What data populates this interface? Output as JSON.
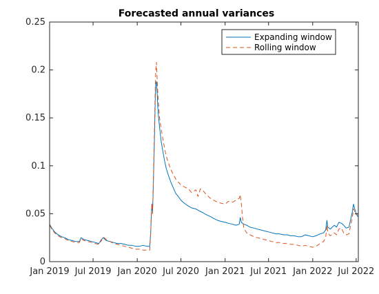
{
  "chart_data": {
    "type": "line",
    "title": "Forecasted annual variances",
    "xlabel": "",
    "ylabel": "",
    "x_ticks": [
      "Jan 2019",
      "Jul 2019",
      "Jan 2020",
      "Jul 2020",
      "Jan 2021",
      "Jul 2021",
      "Jan 2022",
      "Jul 2022"
    ],
    "x_range": [
      "2019-01-01",
      "2022-07-01"
    ],
    "ylim": [
      0,
      0.25
    ],
    "y_ticks": [
      "0",
      "0.05",
      "0.1",
      "0.15",
      "0.2",
      "0.25"
    ],
    "grid": false,
    "legend_position": "top-right",
    "series": [
      {
        "name": "Expanding window",
        "color": "#0072bd",
        "style": "solid",
        "points": [
          [
            "2019-01-01",
            0.039
          ],
          [
            "2019-01-10",
            0.035
          ],
          [
            "2019-01-22",
            0.031
          ],
          [
            "2019-02-05",
            0.028
          ],
          [
            "2019-02-20",
            0.026
          ],
          [
            "2019-03-05",
            0.025
          ],
          [
            "2019-03-20",
            0.023
          ],
          [
            "2019-04-05",
            0.022
          ],
          [
            "2019-04-20",
            0.021
          ],
          [
            "2019-05-05",
            0.021
          ],
          [
            "2019-05-12",
            0.025
          ],
          [
            "2019-05-25",
            0.023
          ],
          [
            "2019-06-10",
            0.022
          ],
          [
            "2019-06-25",
            0.021
          ],
          [
            "2019-07-10",
            0.02
          ],
          [
            "2019-07-25",
            0.019
          ],
          [
            "2019-08-05",
            0.023
          ],
          [
            "2019-08-12",
            0.025
          ],
          [
            "2019-08-25",
            0.022
          ],
          [
            "2019-09-10",
            0.021
          ],
          [
            "2019-09-25",
            0.02
          ],
          [
            "2019-10-10",
            0.019
          ],
          [
            "2019-10-25",
            0.019
          ],
          [
            "2019-11-10",
            0.018
          ],
          [
            "2019-11-25",
            0.017
          ],
          [
            "2019-12-10",
            0.017
          ],
          [
            "2019-12-25",
            0.016
          ],
          [
            "2020-01-10",
            0.016
          ],
          [
            "2020-01-25",
            0.017
          ],
          [
            "2020-02-10",
            0.016
          ],
          [
            "2020-02-22",
            0.016
          ],
          [
            "2020-02-26",
            0.03
          ],
          [
            "2020-02-28",
            0.045
          ],
          [
            "2020-03-02",
            0.06
          ],
          [
            "2020-03-05",
            0.052
          ],
          [
            "2020-03-07",
            0.07
          ],
          [
            "2020-03-10",
            0.1
          ],
          [
            "2020-03-13",
            0.13
          ],
          [
            "2020-03-16",
            0.17
          ],
          [
            "2020-03-18",
            0.185
          ],
          [
            "2020-03-21",
            0.188
          ],
          [
            "2020-03-24",
            0.175
          ],
          [
            "2020-03-27",
            0.16
          ],
          [
            "2020-03-30",
            0.15
          ],
          [
            "2020-04-03",
            0.14
          ],
          [
            "2020-04-10",
            0.125
          ],
          [
            "2020-04-17",
            0.115
          ],
          [
            "2020-04-24",
            0.105
          ],
          [
            "2020-05-01",
            0.097
          ],
          [
            "2020-05-10",
            0.09
          ],
          [
            "2020-05-20",
            0.083
          ],
          [
            "2020-06-01",
            0.076
          ],
          [
            "2020-06-10",
            0.071
          ],
          [
            "2020-06-20",
            0.068
          ],
          [
            "2020-07-01",
            0.064
          ],
          [
            "2020-07-15",
            0.061
          ],
          [
            "2020-08-01",
            0.058
          ],
          [
            "2020-08-15",
            0.056
          ],
          [
            "2020-09-01",
            0.055
          ],
          [
            "2020-09-15",
            0.053
          ],
          [
            "2020-10-01",
            0.051
          ],
          [
            "2020-10-15",
            0.049
          ],
          [
            "2020-11-01",
            0.047
          ],
          [
            "2020-11-15",
            0.045
          ],
          [
            "2020-12-01",
            0.043
          ],
          [
            "2020-12-15",
            0.042
          ],
          [
            "2021-01-01",
            0.041
          ],
          [
            "2021-01-15",
            0.04
          ],
          [
            "2021-02-01",
            0.039
          ],
          [
            "2021-02-15",
            0.038
          ],
          [
            "2021-03-01",
            0.039
          ],
          [
            "2021-03-05",
            0.046
          ],
          [
            "2021-03-10",
            0.041
          ],
          [
            "2021-03-20",
            0.039
          ],
          [
            "2021-04-01",
            0.038
          ],
          [
            "2021-04-15",
            0.036
          ],
          [
            "2021-05-01",
            0.035
          ],
          [
            "2021-05-15",
            0.034
          ],
          [
            "2021-06-01",
            0.033
          ],
          [
            "2021-06-15",
            0.032
          ],
          [
            "2021-07-01",
            0.031
          ],
          [
            "2021-07-15",
            0.03
          ],
          [
            "2021-08-01",
            0.029
          ],
          [
            "2021-08-15",
            0.029
          ],
          [
            "2021-09-01",
            0.028
          ],
          [
            "2021-09-15",
            0.028
          ],
          [
            "2021-10-01",
            0.027
          ],
          [
            "2021-10-15",
            0.027
          ],
          [
            "2021-11-01",
            0.026
          ],
          [
            "2021-11-15",
            0.026
          ],
          [
            "2021-12-01",
            0.028
          ],
          [
            "2021-12-15",
            0.027
          ],
          [
            "2022-01-01",
            0.026
          ],
          [
            "2022-01-15",
            0.027
          ],
          [
            "2022-02-01",
            0.029
          ],
          [
            "2022-02-15",
            0.03
          ],
          [
            "2022-02-24",
            0.033
          ],
          [
            "2022-03-01",
            0.043
          ],
          [
            "2022-03-05",
            0.036
          ],
          [
            "2022-03-15",
            0.034
          ],
          [
            "2022-04-01",
            0.038
          ],
          [
            "2022-04-10",
            0.036
          ],
          [
            "2022-04-20",
            0.041
          ],
          [
            "2022-05-01",
            0.04
          ],
          [
            "2022-05-10",
            0.038
          ],
          [
            "2022-05-20",
            0.035
          ],
          [
            "2022-06-01",
            0.036
          ],
          [
            "2022-06-10",
            0.046
          ],
          [
            "2022-06-15",
            0.052
          ],
          [
            "2022-06-20",
            0.06
          ],
          [
            "2022-06-25",
            0.055
          ],
          [
            "2022-07-01",
            0.05
          ],
          [
            "2022-07-08",
            0.047
          ]
        ]
      },
      {
        "name": "Rolling window",
        "color": "#d95319",
        "style": "dashed",
        "points": [
          [
            "2019-01-01",
            0.038
          ],
          [
            "2019-01-10",
            0.034
          ],
          [
            "2019-01-22",
            0.03
          ],
          [
            "2019-02-05",
            0.027
          ],
          [
            "2019-02-20",
            0.025
          ],
          [
            "2019-03-05",
            0.024
          ],
          [
            "2019-03-20",
            0.022
          ],
          [
            "2019-04-05",
            0.021
          ],
          [
            "2019-04-20",
            0.02
          ],
          [
            "2019-05-05",
            0.02
          ],
          [
            "2019-05-12",
            0.024
          ],
          [
            "2019-05-25",
            0.022
          ],
          [
            "2019-06-10",
            0.021
          ],
          [
            "2019-06-25",
            0.02
          ],
          [
            "2019-07-10",
            0.019
          ],
          [
            "2019-07-25",
            0.018
          ],
          [
            "2019-08-05",
            0.022
          ],
          [
            "2019-08-12",
            0.026
          ],
          [
            "2019-08-25",
            0.023
          ],
          [
            "2019-09-10",
            0.021
          ],
          [
            "2019-09-25",
            0.019
          ],
          [
            "2019-10-10",
            0.018
          ],
          [
            "2019-10-25",
            0.017
          ],
          [
            "2019-11-10",
            0.016
          ],
          [
            "2019-11-25",
            0.015
          ],
          [
            "2019-12-10",
            0.014
          ],
          [
            "2019-12-25",
            0.013
          ],
          [
            "2020-01-10",
            0.013
          ],
          [
            "2020-01-25",
            0.012
          ],
          [
            "2020-02-10",
            0.012
          ],
          [
            "2020-02-22",
            0.012
          ],
          [
            "2020-02-26",
            0.03
          ],
          [
            "2020-02-28",
            0.045
          ],
          [
            "2020-03-02",
            0.06
          ],
          [
            "2020-03-05",
            0.05
          ],
          [
            "2020-03-07",
            0.07
          ],
          [
            "2020-03-10",
            0.105
          ],
          [
            "2020-03-13",
            0.14
          ],
          [
            "2020-03-16",
            0.18
          ],
          [
            "2020-03-18",
            0.2
          ],
          [
            "2020-03-21",
            0.208
          ],
          [
            "2020-03-24",
            0.19
          ],
          [
            "2020-03-27",
            0.175
          ],
          [
            "2020-03-30",
            0.162
          ],
          [
            "2020-04-03",
            0.15
          ],
          [
            "2020-04-10",
            0.138
          ],
          [
            "2020-04-17",
            0.128
          ],
          [
            "2020-04-24",
            0.118
          ],
          [
            "2020-05-01",
            0.11
          ],
          [
            "2020-05-10",
            0.103
          ],
          [
            "2020-05-20",
            0.096
          ],
          [
            "2020-06-01",
            0.09
          ],
          [
            "2020-06-10",
            0.086
          ],
          [
            "2020-06-20",
            0.083
          ],
          [
            "2020-07-01",
            0.08
          ],
          [
            "2020-07-15",
            0.078
          ],
          [
            "2020-08-01",
            0.076
          ],
          [
            "2020-08-15",
            0.072
          ],
          [
            "2020-09-01",
            0.075
          ],
          [
            "2020-09-10",
            0.068
          ],
          [
            "2020-09-20",
            0.076
          ],
          [
            "2020-10-01",
            0.074
          ],
          [
            "2020-10-15",
            0.07
          ],
          [
            "2020-11-01",
            0.066
          ],
          [
            "2020-11-15",
            0.064
          ],
          [
            "2020-12-01",
            0.062
          ],
          [
            "2020-12-15",
            0.061
          ],
          [
            "2021-01-01",
            0.06
          ],
          [
            "2021-01-15",
            0.063
          ],
          [
            "2021-02-01",
            0.062
          ],
          [
            "2021-02-15",
            0.064
          ],
          [
            "2021-03-01",
            0.066
          ],
          [
            "2021-03-05",
            0.07
          ],
          [
            "2021-03-10",
            0.06
          ],
          [
            "2021-03-15",
            0.045
          ],
          [
            "2021-03-20",
            0.035
          ],
          [
            "2021-04-01",
            0.03
          ],
          [
            "2021-04-15",
            0.028
          ],
          [
            "2021-05-01",
            0.026
          ],
          [
            "2021-05-15",
            0.025
          ],
          [
            "2021-06-01",
            0.024
          ],
          [
            "2021-06-15",
            0.023
          ],
          [
            "2021-07-01",
            0.022
          ],
          [
            "2021-07-15",
            0.021
          ],
          [
            "2021-08-01",
            0.02
          ],
          [
            "2021-08-15",
            0.02
          ],
          [
            "2021-09-01",
            0.019
          ],
          [
            "2021-09-15",
            0.019
          ],
          [
            "2021-10-01",
            0.018
          ],
          [
            "2021-10-15",
            0.018
          ],
          [
            "2021-11-01",
            0.017
          ],
          [
            "2021-11-15",
            0.016
          ],
          [
            "2021-12-01",
            0.017
          ],
          [
            "2021-12-15",
            0.016
          ],
          [
            "2022-01-01",
            0.015
          ],
          [
            "2022-01-15",
            0.016
          ],
          [
            "2022-02-01",
            0.019
          ],
          [
            "2022-02-15",
            0.021
          ],
          [
            "2022-02-24",
            0.025
          ],
          [
            "2022-03-01",
            0.038
          ],
          [
            "2022-03-05",
            0.03
          ],
          [
            "2022-03-15",
            0.027
          ],
          [
            "2022-04-01",
            0.03
          ],
          [
            "2022-04-10",
            0.028
          ],
          [
            "2022-04-20",
            0.034
          ],
          [
            "2022-05-01",
            0.035
          ],
          [
            "2022-05-10",
            0.03
          ],
          [
            "2022-05-20",
            0.028
          ],
          [
            "2022-06-01",
            0.029
          ],
          [
            "2022-06-10",
            0.04
          ],
          [
            "2022-06-15",
            0.046
          ],
          [
            "2022-06-20",
            0.055
          ],
          [
            "2022-06-25",
            0.052
          ],
          [
            "2022-07-01",
            0.049
          ],
          [
            "2022-07-08",
            0.05
          ]
        ]
      }
    ]
  }
}
